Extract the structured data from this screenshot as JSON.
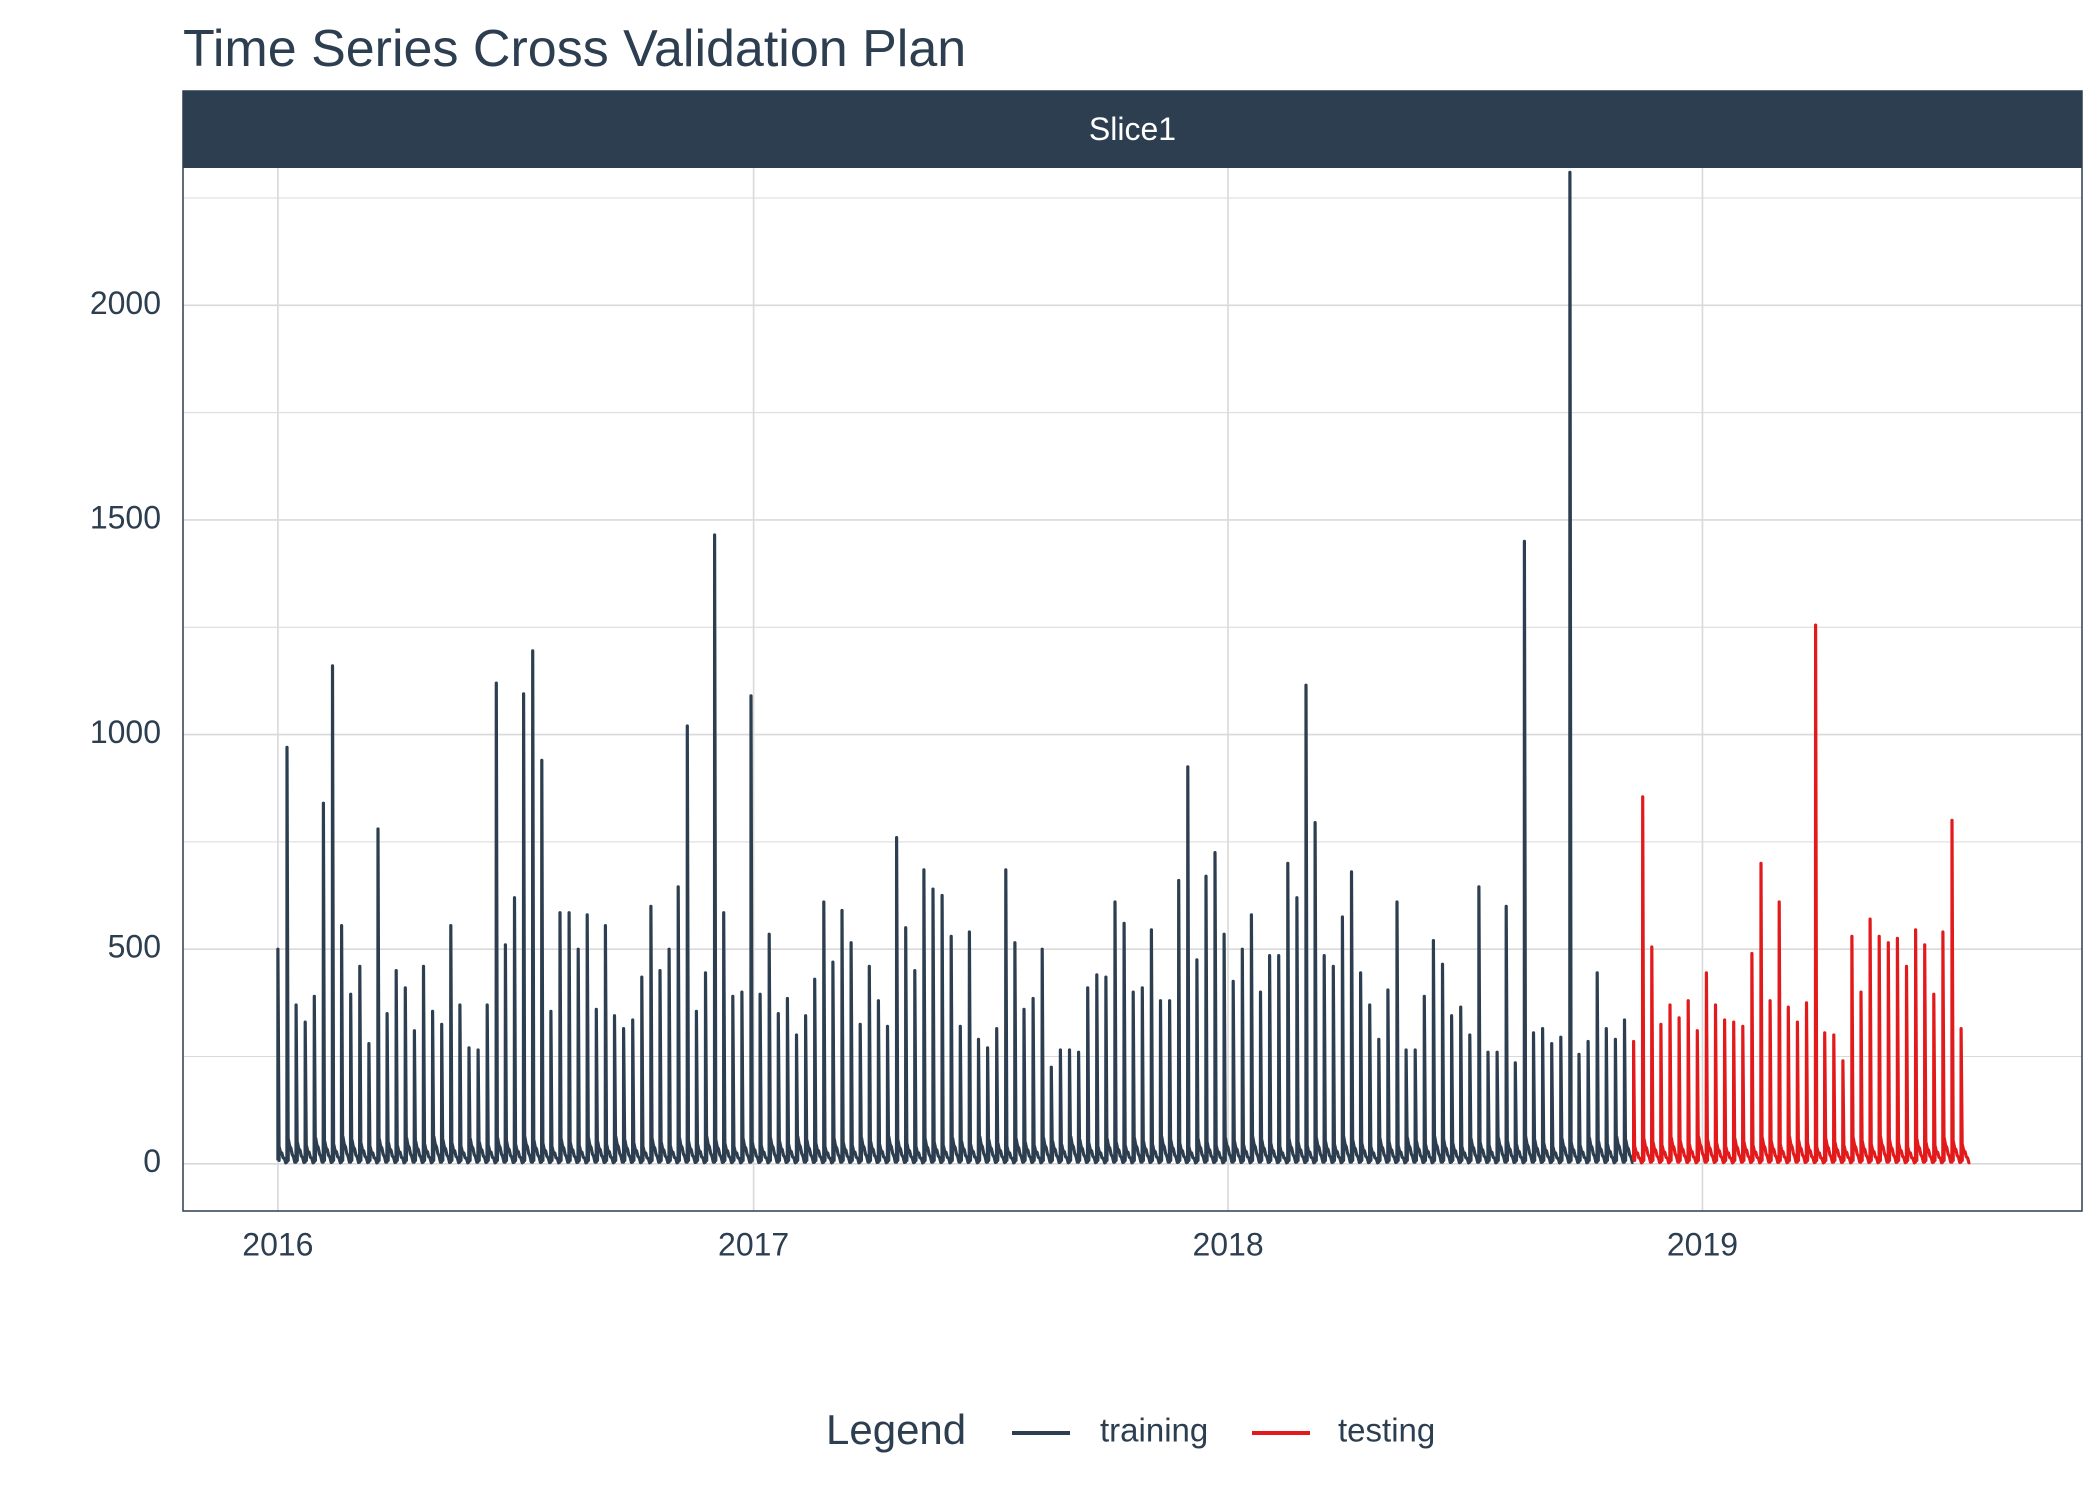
{
  "chart_data": {
    "type": "line",
    "title": "Time Series Cross Validation Plan",
    "facet_label": "Slice1",
    "xlabel": "",
    "ylabel": "",
    "x_axis": {
      "type": "date",
      "range": [
        "2015-10-20",
        "2019-10-20"
      ],
      "ticks": [
        "2016",
        "2017",
        "2018",
        "2019"
      ],
      "tick_dates": [
        "2016-01-01",
        "2017-01-01",
        "2018-01-01",
        "2019-01-01"
      ]
    },
    "y_axis": {
      "range": [
        -110,
        2320
      ],
      "ticks": [
        0,
        500,
        1000,
        1500,
        2000
      ]
    },
    "grid": true,
    "legend": {
      "title": "Legend",
      "position": "bottom"
    },
    "colors": {
      "training": "#2c3e50",
      "testing": "#e31a1c",
      "strip": "#2c3e50",
      "grid": "#d9d9d9"
    },
    "series": [
      {
        "name": "training",
        "start": "2016-01-01",
        "peaks": [
          [
            "2016-01-01",
            500
          ],
          [
            "2016-01-08",
            970
          ],
          [
            "2016-01-15",
            370
          ],
          [
            "2016-01-22",
            330
          ],
          [
            "2016-01-29",
            390
          ],
          [
            "2016-02-05",
            840
          ],
          [
            "2016-02-12",
            1160
          ],
          [
            "2016-02-19",
            555
          ],
          [
            "2016-02-26",
            395
          ],
          [
            "2016-03-04",
            460
          ],
          [
            "2016-03-11",
            280
          ],
          [
            "2016-03-18",
            780
          ],
          [
            "2016-03-25",
            350
          ],
          [
            "2016-04-01",
            450
          ],
          [
            "2016-04-08",
            410
          ],
          [
            "2016-04-15",
            310
          ],
          [
            "2016-04-22",
            460
          ],
          [
            "2016-04-29",
            355
          ],
          [
            "2016-05-06",
            325
          ],
          [
            "2016-05-13",
            555
          ],
          [
            "2016-05-20",
            370
          ],
          [
            "2016-05-27",
            270
          ],
          [
            "2016-06-03",
            265
          ],
          [
            "2016-06-10",
            370
          ],
          [
            "2016-06-17",
            1120
          ],
          [
            "2016-06-24",
            510
          ],
          [
            "2016-07-01",
            620
          ],
          [
            "2016-07-08",
            1095
          ],
          [
            "2016-07-15",
            1195
          ],
          [
            "2016-07-22",
            940
          ],
          [
            "2016-07-29",
            355
          ],
          [
            "2016-08-05",
            585
          ],
          [
            "2016-08-12",
            585
          ],
          [
            "2016-08-19",
            500
          ],
          [
            "2016-08-26",
            580
          ],
          [
            "2016-09-02",
            360
          ],
          [
            "2016-09-09",
            555
          ],
          [
            "2016-09-16",
            345
          ],
          [
            "2016-09-23",
            315
          ],
          [
            "2016-09-30",
            335
          ],
          [
            "2016-10-07",
            435
          ],
          [
            "2016-10-14",
            600
          ],
          [
            "2016-10-21",
            450
          ],
          [
            "2016-10-28",
            500
          ],
          [
            "2016-11-04",
            645
          ],
          [
            "2016-11-11",
            1020
          ],
          [
            "2016-11-18",
            355
          ],
          [
            "2016-11-25",
            445
          ],
          [
            "2016-12-02",
            1465
          ],
          [
            "2016-12-09",
            585
          ],
          [
            "2016-12-16",
            390
          ],
          [
            "2016-12-23",
            400
          ],
          [
            "2016-12-30",
            1090
          ],
          [
            "2017-01-06",
            395
          ],
          [
            "2017-01-13",
            535
          ],
          [
            "2017-01-20",
            350
          ],
          [
            "2017-01-27",
            385
          ],
          [
            "2017-02-03",
            300
          ],
          [
            "2017-02-10",
            345
          ],
          [
            "2017-02-17",
            430
          ],
          [
            "2017-02-24",
            610
          ],
          [
            "2017-03-03",
            470
          ],
          [
            "2017-03-10",
            590
          ],
          [
            "2017-03-17",
            515
          ],
          [
            "2017-03-24",
            325
          ],
          [
            "2017-03-31",
            460
          ],
          [
            "2017-04-07",
            380
          ],
          [
            "2017-04-14",
            320
          ],
          [
            "2017-04-21",
            760
          ],
          [
            "2017-04-28",
            550
          ],
          [
            "2017-05-05",
            450
          ],
          [
            "2017-05-12",
            685
          ],
          [
            "2017-05-19",
            640
          ],
          [
            "2017-05-26",
            625
          ],
          [
            "2017-06-02",
            530
          ],
          [
            "2017-06-09",
            320
          ],
          [
            "2017-06-16",
            540
          ],
          [
            "2017-06-23",
            290
          ],
          [
            "2017-06-30",
            270
          ],
          [
            "2017-07-07",
            315
          ],
          [
            "2017-07-14",
            685
          ],
          [
            "2017-07-21",
            515
          ],
          [
            "2017-07-28",
            360
          ],
          [
            "2017-08-04",
            385
          ],
          [
            "2017-08-11",
            500
          ],
          [
            "2017-08-18",
            225
          ],
          [
            "2017-08-25",
            265
          ],
          [
            "2017-09-01",
            265
          ],
          [
            "2017-09-08",
            260
          ],
          [
            "2017-09-15",
            410
          ],
          [
            "2017-09-22",
            440
          ],
          [
            "2017-09-29",
            435
          ],
          [
            "2017-10-06",
            610
          ],
          [
            "2017-10-13",
            560
          ],
          [
            "2017-10-20",
            400
          ],
          [
            "2017-10-27",
            410
          ],
          [
            "2017-11-03",
            545
          ],
          [
            "2017-11-10",
            380
          ],
          [
            "2017-11-17",
            380
          ],
          [
            "2017-11-24",
            660
          ],
          [
            "2017-12-01",
            925
          ],
          [
            "2017-12-08",
            475
          ],
          [
            "2017-12-15",
            670
          ],
          [
            "2017-12-22",
            725
          ],
          [
            "2017-12-29",
            535
          ],
          [
            "2018-01-05",
            425
          ],
          [
            "2018-01-12",
            500
          ],
          [
            "2018-01-19",
            580
          ],
          [
            "2018-01-26",
            400
          ],
          [
            "2018-02-02",
            485
          ],
          [
            "2018-02-09",
            485
          ],
          [
            "2018-02-16",
            700
          ],
          [
            "2018-02-23",
            620
          ],
          [
            "2018-03-02",
            1115
          ],
          [
            "2018-03-09",
            795
          ],
          [
            "2018-03-16",
            485
          ],
          [
            "2018-03-23",
            460
          ],
          [
            "2018-03-30",
            575
          ],
          [
            "2018-04-06",
            680
          ],
          [
            "2018-04-13",
            445
          ],
          [
            "2018-04-20",
            370
          ],
          [
            "2018-04-27",
            290
          ],
          [
            "2018-05-04",
            405
          ],
          [
            "2018-05-11",
            610
          ],
          [
            "2018-05-18",
            265
          ],
          [
            "2018-05-25",
            265
          ],
          [
            "2018-06-01",
            390
          ],
          [
            "2018-06-08",
            520
          ],
          [
            "2018-06-15",
            465
          ],
          [
            "2018-06-22",
            345
          ],
          [
            "2018-06-29",
            365
          ],
          [
            "2018-07-06",
            300
          ],
          [
            "2018-07-13",
            645
          ],
          [
            "2018-07-20",
            260
          ],
          [
            "2018-07-27",
            260
          ],
          [
            "2018-08-03",
            600
          ],
          [
            "2018-08-10",
            235
          ],
          [
            "2018-08-17",
            1450
          ],
          [
            "2018-08-24",
            305
          ],
          [
            "2018-08-31",
            315
          ],
          [
            "2018-09-07",
            280
          ],
          [
            "2018-09-14",
            295
          ],
          [
            "2018-09-21",
            2310
          ],
          [
            "2018-09-28",
            255
          ],
          [
            "2018-10-05",
            285
          ],
          [
            "2018-10-12",
            445
          ],
          [
            "2018-10-19",
            315
          ],
          [
            "2018-10-26",
            290
          ],
          [
            "2018-11-02",
            335
          ]
        ]
      },
      {
        "name": "testing",
        "start": "2018-11-09",
        "peaks": [
          [
            "2018-11-09",
            285
          ],
          [
            "2018-11-16",
            855
          ],
          [
            "2018-11-23",
            505
          ],
          [
            "2018-11-30",
            325
          ],
          [
            "2018-12-07",
            370
          ],
          [
            "2018-12-14",
            340
          ],
          [
            "2018-12-21",
            380
          ],
          [
            "2018-12-28",
            310
          ],
          [
            "2019-01-04",
            445
          ],
          [
            "2019-01-11",
            370
          ],
          [
            "2019-01-18",
            335
          ],
          [
            "2019-01-25",
            330
          ],
          [
            "2019-02-01",
            320
          ],
          [
            "2019-02-08",
            490
          ],
          [
            "2019-02-15",
            700
          ],
          [
            "2019-02-22",
            380
          ],
          [
            "2019-03-01",
            610
          ],
          [
            "2019-03-08",
            365
          ],
          [
            "2019-03-15",
            330
          ],
          [
            "2019-03-22",
            375
          ],
          [
            "2019-03-29",
            1255
          ],
          [
            "2019-04-05",
            305
          ],
          [
            "2019-04-12",
            300
          ],
          [
            "2019-04-19",
            240
          ],
          [
            "2019-04-26",
            530
          ],
          [
            "2019-05-03",
            400
          ],
          [
            "2019-05-10",
            570
          ],
          [
            "2019-05-17",
            530
          ],
          [
            "2019-05-24",
            515
          ],
          [
            "2019-05-31",
            525
          ],
          [
            "2019-06-07",
            460
          ],
          [
            "2019-06-14",
            545
          ],
          [
            "2019-06-21",
            510
          ],
          [
            "2019-06-28",
            395
          ],
          [
            "2019-07-05",
            540
          ],
          [
            "2019-07-12",
            800
          ],
          [
            "2019-07-19",
            315
          ]
        ]
      }
    ]
  }
}
